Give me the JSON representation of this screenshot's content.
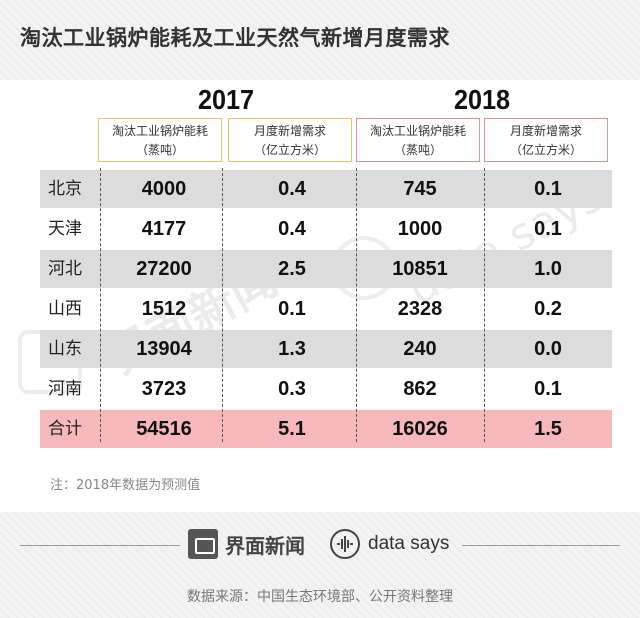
{
  "title": "淘汰工业锅炉能耗及工业天然气新增月度需求",
  "years": [
    "2017",
    "2018"
  ],
  "column_headers": {
    "energy": [
      "淘汰工业锅炉能耗",
      "（蒸吨）"
    ],
    "demand": [
      "月度新增需求",
      "（亿立方米）"
    ]
  },
  "rows": [
    {
      "name": "北京",
      "e2017": "4000",
      "d2017": "0.4",
      "e2018": "745",
      "d2018": "0.1"
    },
    {
      "name": "天津",
      "e2017": "4177",
      "d2017": "0.4",
      "e2018": "1000",
      "d2018": "0.1"
    },
    {
      "name": "河北",
      "e2017": "27200",
      "d2017": "2.5",
      "e2018": "10851",
      "d2018": "1.0"
    },
    {
      "name": "山西",
      "e2017": "1512",
      "d2017": "0.1",
      "e2018": "2328",
      "d2018": "0.2"
    },
    {
      "name": "山东",
      "e2017": "13904",
      "d2017": "1.3",
      "e2018": "240",
      "d2018": "0.0"
    },
    {
      "name": "河南",
      "e2017": "3723",
      "d2017": "0.3",
      "e2018": "862",
      "d2018": "0.1"
    },
    {
      "name": "合计",
      "e2017": "54516",
      "d2017": "5.1",
      "e2018": "16026",
      "d2018": "1.5"
    }
  ],
  "note": "注：2018年数据为预测值",
  "brands": {
    "jiemian": "界面新闻",
    "datasays": "data says"
  },
  "source": "数据来源：中国生态环境部、公开资料整理",
  "colors": {
    "shade_row": "#dcdcdc",
    "total_row": "#f7b8bb",
    "header_2017_border": "#e6c96d",
    "header_2018_border": "#e58f95"
  }
}
